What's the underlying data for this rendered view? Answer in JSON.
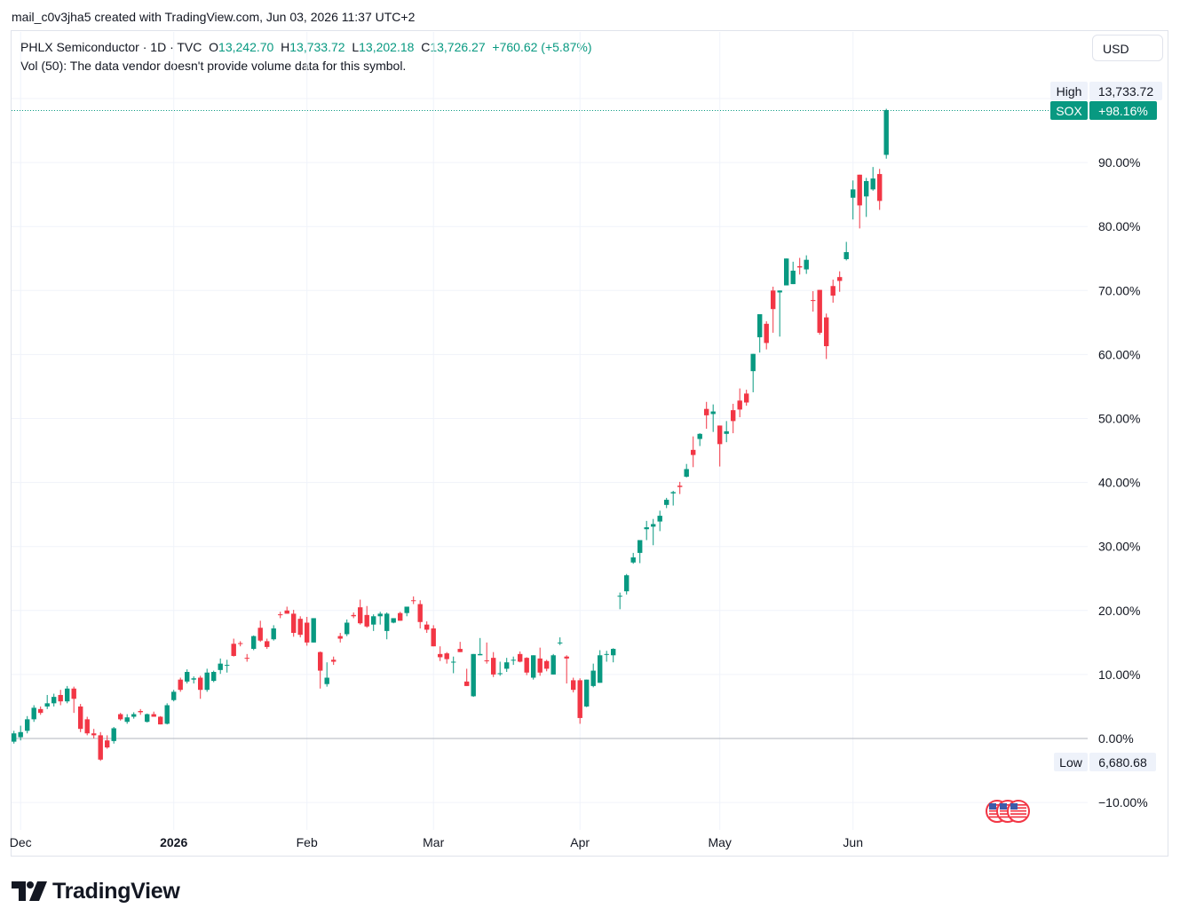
{
  "caption": "mail_c0v3jha5 created with TradingView.com, Jun 03, 2026 11:37 UTC+2",
  "legend": {
    "symbol": "PHLX Semiconductor · 1D · TVC",
    "o_label": "O",
    "o_value": "13,242.70",
    "h_label": "H",
    "h_value": "13,733.72",
    "l_label": "L",
    "l_value": "13,202.18",
    "c_label": "C",
    "c_value": "13,726.27",
    "change": "+760.62 (+5.87%)"
  },
  "volume_note": "Vol (50): The data vendor doesn't provide volume data for this symbol.",
  "currency_button": "USD",
  "brand": "TradingView",
  "colors": {
    "up": "#089981",
    "down": "#f23645",
    "grid": "#f0f3fa",
    "axis_text": "#131722"
  },
  "chart_data": {
    "type": "candlestick",
    "symbol_tag": "SOX",
    "last_change": "+98.16%",
    "high_label": "High",
    "high_value": "13,733.72",
    "low_label": "Low",
    "low_value": "6,680.68",
    "y_scale": "percent",
    "ylim": [
      -13.5,
      110
    ],
    "y_ticks": [
      "−10.00%",
      "0.00%",
      "10.00%",
      "20.00%",
      "30.00%",
      "40.00%",
      "50.00%",
      "60.00%",
      "70.00%",
      "80.00%",
      "90.00%"
    ],
    "y_tick_values": [
      -10,
      0,
      10,
      20,
      30,
      40,
      50,
      60,
      70,
      80,
      90
    ],
    "x_labels": [
      {
        "label": "Dec",
        "index": 1,
        "bold": false
      },
      {
        "label": "2026",
        "index": 24,
        "bold": true
      },
      {
        "label": "Feb",
        "index": 44,
        "bold": false
      },
      {
        "label": "Mar",
        "index": 63,
        "bold": false
      },
      {
        "label": "Apr",
        "index": 85,
        "bold": false
      },
      {
        "label": "May",
        "index": 106,
        "bold": false
      },
      {
        "label": "Jun",
        "index": 126,
        "bold": false
      }
    ],
    "grid": true,
    "ohlc_percent": [
      [
        -0.5,
        1.2,
        -0.8,
        0.8
      ],
      [
        0.2,
        2.0,
        -0.3,
        1.0
      ],
      [
        1.2,
        3.5,
        0.8,
        3.0
      ],
      [
        3.0,
        5.2,
        2.6,
        4.8
      ],
      [
        4.6,
        5.0,
        3.7,
        4.0
      ],
      [
        5.0,
        6.8,
        4.6,
        5.5
      ],
      [
        5.5,
        7.0,
        5.0,
        6.5
      ],
      [
        6.8,
        7.6,
        5.2,
        5.8
      ],
      [
        5.8,
        8.2,
        5.5,
        7.8
      ],
      [
        7.8,
        8.1,
        4.0,
        6.2
      ],
      [
        5.0,
        5.4,
        1.0,
        1.5
      ],
      [
        3.0,
        3.4,
        0.5,
        0.8
      ],
      [
        0.8,
        1.5,
        0.0,
        0.5
      ],
      [
        0.5,
        1.0,
        -3.5,
        -3.3
      ],
      [
        -0.3,
        0.5,
        -1.6,
        -1.4
      ],
      [
        -0.4,
        1.8,
        -0.8,
        1.6
      ],
      [
        3.8,
        4.0,
        2.8,
        3.0
      ],
      [
        2.6,
        3.8,
        2.3,
        3.3
      ],
      [
        3.4,
        4.1,
        3.1,
        3.8
      ],
      [
        4.3,
        4.6,
        3.7,
        4.1
      ],
      [
        2.6,
        3.9,
        2.5,
        3.8
      ],
      [
        3.8,
        4.2,
        3.4,
        3.4
      ],
      [
        3.4,
        3.5,
        2.2,
        2.2
      ],
      [
        2.3,
        5.5,
        2.2,
        5.2
      ],
      [
        6.0,
        7.6,
        5.8,
        7.3
      ],
      [
        9.2,
        9.5,
        7.3,
        7.6
      ],
      [
        8.9,
        10.8,
        8.6,
        10.4
      ],
      [
        9.2,
        9.7,
        8.6,
        9.4
      ],
      [
        9.5,
        9.8,
        6.2,
        7.6
      ],
      [
        7.6,
        10.9,
        7.3,
        10.3
      ],
      [
        9.0,
        10.6,
        8.8,
        10.4
      ],
      [
        10.7,
        12.5,
        10.1,
        11.7
      ],
      [
        11.5,
        12.3,
        10.3,
        11.5
      ],
      [
        14.8,
        15.6,
        12.8,
        12.9
      ],
      [
        14.9,
        15.2,
        14.4,
        14.8
      ],
      [
        12.6,
        13.2,
        12.0,
        12.5
      ],
      [
        14.0,
        16.1,
        13.8,
        16.0
      ],
      [
        17.3,
        18.4,
        15.1,
        15.3
      ],
      [
        15.2,
        15.6,
        14.0,
        14.3
      ],
      [
        15.5,
        17.7,
        15.3,
        17.2
      ],
      [
        19.4,
        19.8,
        18.8,
        19.3
      ],
      [
        20.0,
        20.6,
        19.5,
        19.5
      ],
      [
        19.5,
        20.1,
        15.9,
        16.5
      ],
      [
        18.7,
        19.1,
        15.8,
        16.2
      ],
      [
        18.1,
        19.0,
        14.5,
        15.0
      ],
      [
        15.0,
        18.5,
        15.0,
        18.8
      ],
      [
        13.5,
        13.6,
        7.8,
        10.6
      ],
      [
        8.5,
        11.9,
        8.1,
        9.5
      ],
      [
        12.3,
        12.8,
        11.5,
        12.0
      ],
      [
        16.0,
        16.5,
        15.0,
        15.6
      ],
      [
        16.3,
        18.6,
        16.0,
        18.1
      ],
      [
        19.3,
        19.7,
        18.8,
        19.1
      ],
      [
        20.5,
        21.7,
        17.8,
        18.0
      ],
      [
        19.3,
        20.7,
        17.3,
        17.5
      ],
      [
        17.8,
        19.4,
        16.8,
        19.1
      ],
      [
        19.1,
        19.8,
        17.8,
        19.5
      ],
      [
        16.8,
        19.7,
        15.5,
        19.5
      ],
      [
        18.1,
        18.8,
        18.0,
        18.8
      ],
      [
        19.6,
        19.8,
        18.4,
        18.4
      ],
      [
        19.6,
        20.6,
        19.1,
        20.6
      ],
      [
        21.6,
        22.2,
        21.0,
        21.5
      ],
      [
        21.0,
        21.6,
        17.2,
        18.2
      ],
      [
        17.8,
        18.3,
        16.5,
        17.0
      ],
      [
        17.2,
        17.7,
        14.4,
        14.4
      ],
      [
        13.2,
        14.4,
        12.1,
        12.7
      ],
      [
        13.3,
        13.5,
        11.7,
        12.4
      ],
      [
        12.0,
        12.8,
        10.2,
        12.0
      ],
      [
        14.0,
        15.1,
        13.5,
        13.5
      ],
      [
        8.9,
        10.9,
        8.5,
        8.2
      ],
      [
        6.6,
        13.1,
        6.5,
        13.2
      ],
      [
        13.0,
        15.7,
        13.0,
        13.2
      ],
      [
        12.2,
        15.0,
        11.7,
        12.1
      ],
      [
        12.6,
        13.5,
        9.6,
        10.0
      ],
      [
        10.2,
        12.0,
        9.8,
        10.2
      ],
      [
        10.9,
        12.6,
        10.4,
        11.9
      ],
      [
        12.3,
        12.8,
        11.5,
        12.3
      ],
      [
        13.2,
        13.6,
        11.9,
        12.0
      ],
      [
        12.6,
        12.7,
        9.9,
        10.3
      ],
      [
        9.5,
        12.9,
        9.2,
        13.0
      ],
      [
        12.5,
        14.2,
        9.8,
        10.3
      ],
      [
        12.1,
        12.3,
        10.5,
        10.9
      ],
      [
        10.0,
        13.2,
        10.0,
        13.0
      ],
      [
        14.9,
        15.8,
        14.6,
        15.0
      ],
      [
        12.8,
        13.0,
        8.6,
        12.5
      ],
      [
        9.1,
        9.5,
        7.2,
        7.6
      ],
      [
        9.1,
        9.4,
        2.3,
        3.2
      ],
      [
        5.0,
        9.0,
        4.9,
        9.2
      ],
      [
        8.2,
        11.7,
        8.0,
        10.6
      ],
      [
        8.7,
        13.8,
        8.7,
        13.0
      ],
      [
        13.1,
        13.7,
        12.0,
        13.2
      ],
      [
        13.0,
        14.1,
        11.9,
        14.0
      ],
      [
        22.3,
        22.8,
        20.2,
        22.3
      ],
      [
        23.0,
        25.7,
        22.5,
        25.5
      ],
      [
        27.5,
        29.0,
        27.3,
        28.3
      ],
      [
        29.0,
        30.6,
        27.4,
        31.0
      ],
      [
        32.7,
        34.0,
        31.0,
        33.0
      ],
      [
        33.1,
        34.3,
        30.2,
        33.5
      ],
      [
        33.9,
        35.6,
        32.4,
        34.8
      ],
      [
        36.5,
        37.6,
        36.0,
        37.3
      ],
      [
        38.3,
        38.7,
        36.4,
        38.5
      ],
      [
        39.5,
        40.1,
        38.2,
        39.3
      ],
      [
        40.9,
        42.9,
        40.8,
        42.1
      ],
      [
        45.1,
        47.2,
        42.4,
        44.3
      ],
      [
        46.8,
        47.7,
        45.7,
        47.6
      ],
      [
        51.5,
        52.6,
        48.4,
        50.5
      ],
      [
        50.7,
        52.2,
        47.9,
        51.1
      ],
      [
        48.9,
        48.2,
        42.5,
        46.0
      ],
      [
        47.6,
        49.6,
        46.3,
        48.0
      ],
      [
        51.3,
        52.3,
        47.7,
        49.6
      ],
      [
        52.8,
        54.7,
        50.2,
        51.4
      ],
      [
        53.9,
        54.5,
        52.0,
        52.5
      ],
      [
        57.4,
        60.1,
        54.1,
        60.1
      ],
      [
        62.7,
        64.5,
        60.3,
        66.3
      ],
      [
        64.8,
        65.2,
        60.8,
        61.8
      ],
      [
        70.0,
        70.6,
        63.4,
        67.1
      ],
      [
        69.7,
        70.0,
        62.8,
        70.0
      ],
      [
        70.8,
        75.0,
        73.5,
        75.0
      ],
      [
        71.0,
        74.5,
        71.3,
        73.1
      ],
      [
        73.8,
        75.1,
        72.5,
        73.6
      ],
      [
        73.3,
        75.5,
        72.6,
        74.8
      ],
      [
        68.5,
        69.9,
        66.7,
        68.4
      ],
      [
        70.1,
        70.1,
        63.1,
        63.4
      ],
      [
        65.8,
        66.4,
        59.3,
        61.3
      ],
      [
        70.7,
        71.7,
        68.1,
        69.2
      ],
      [
        72.1,
        73.0,
        69.8,
        71.5
      ],
      [
        74.9,
        77.6,
        74.7,
        76.0
      ],
      [
        84.5,
        87.2,
        81.1,
        85.8
      ],
      [
        88.1,
        88.1,
        79.7,
        83.3
      ],
      [
        84.7,
        87.6,
        81.5,
        87.1
      ],
      [
        85.8,
        89.3,
        85.6,
        87.5
      ],
      [
        88.2,
        89.0,
        82.6,
        84.0
      ],
      [
        91.2,
        98.4,
        90.6,
        98.2
      ]
    ]
  }
}
